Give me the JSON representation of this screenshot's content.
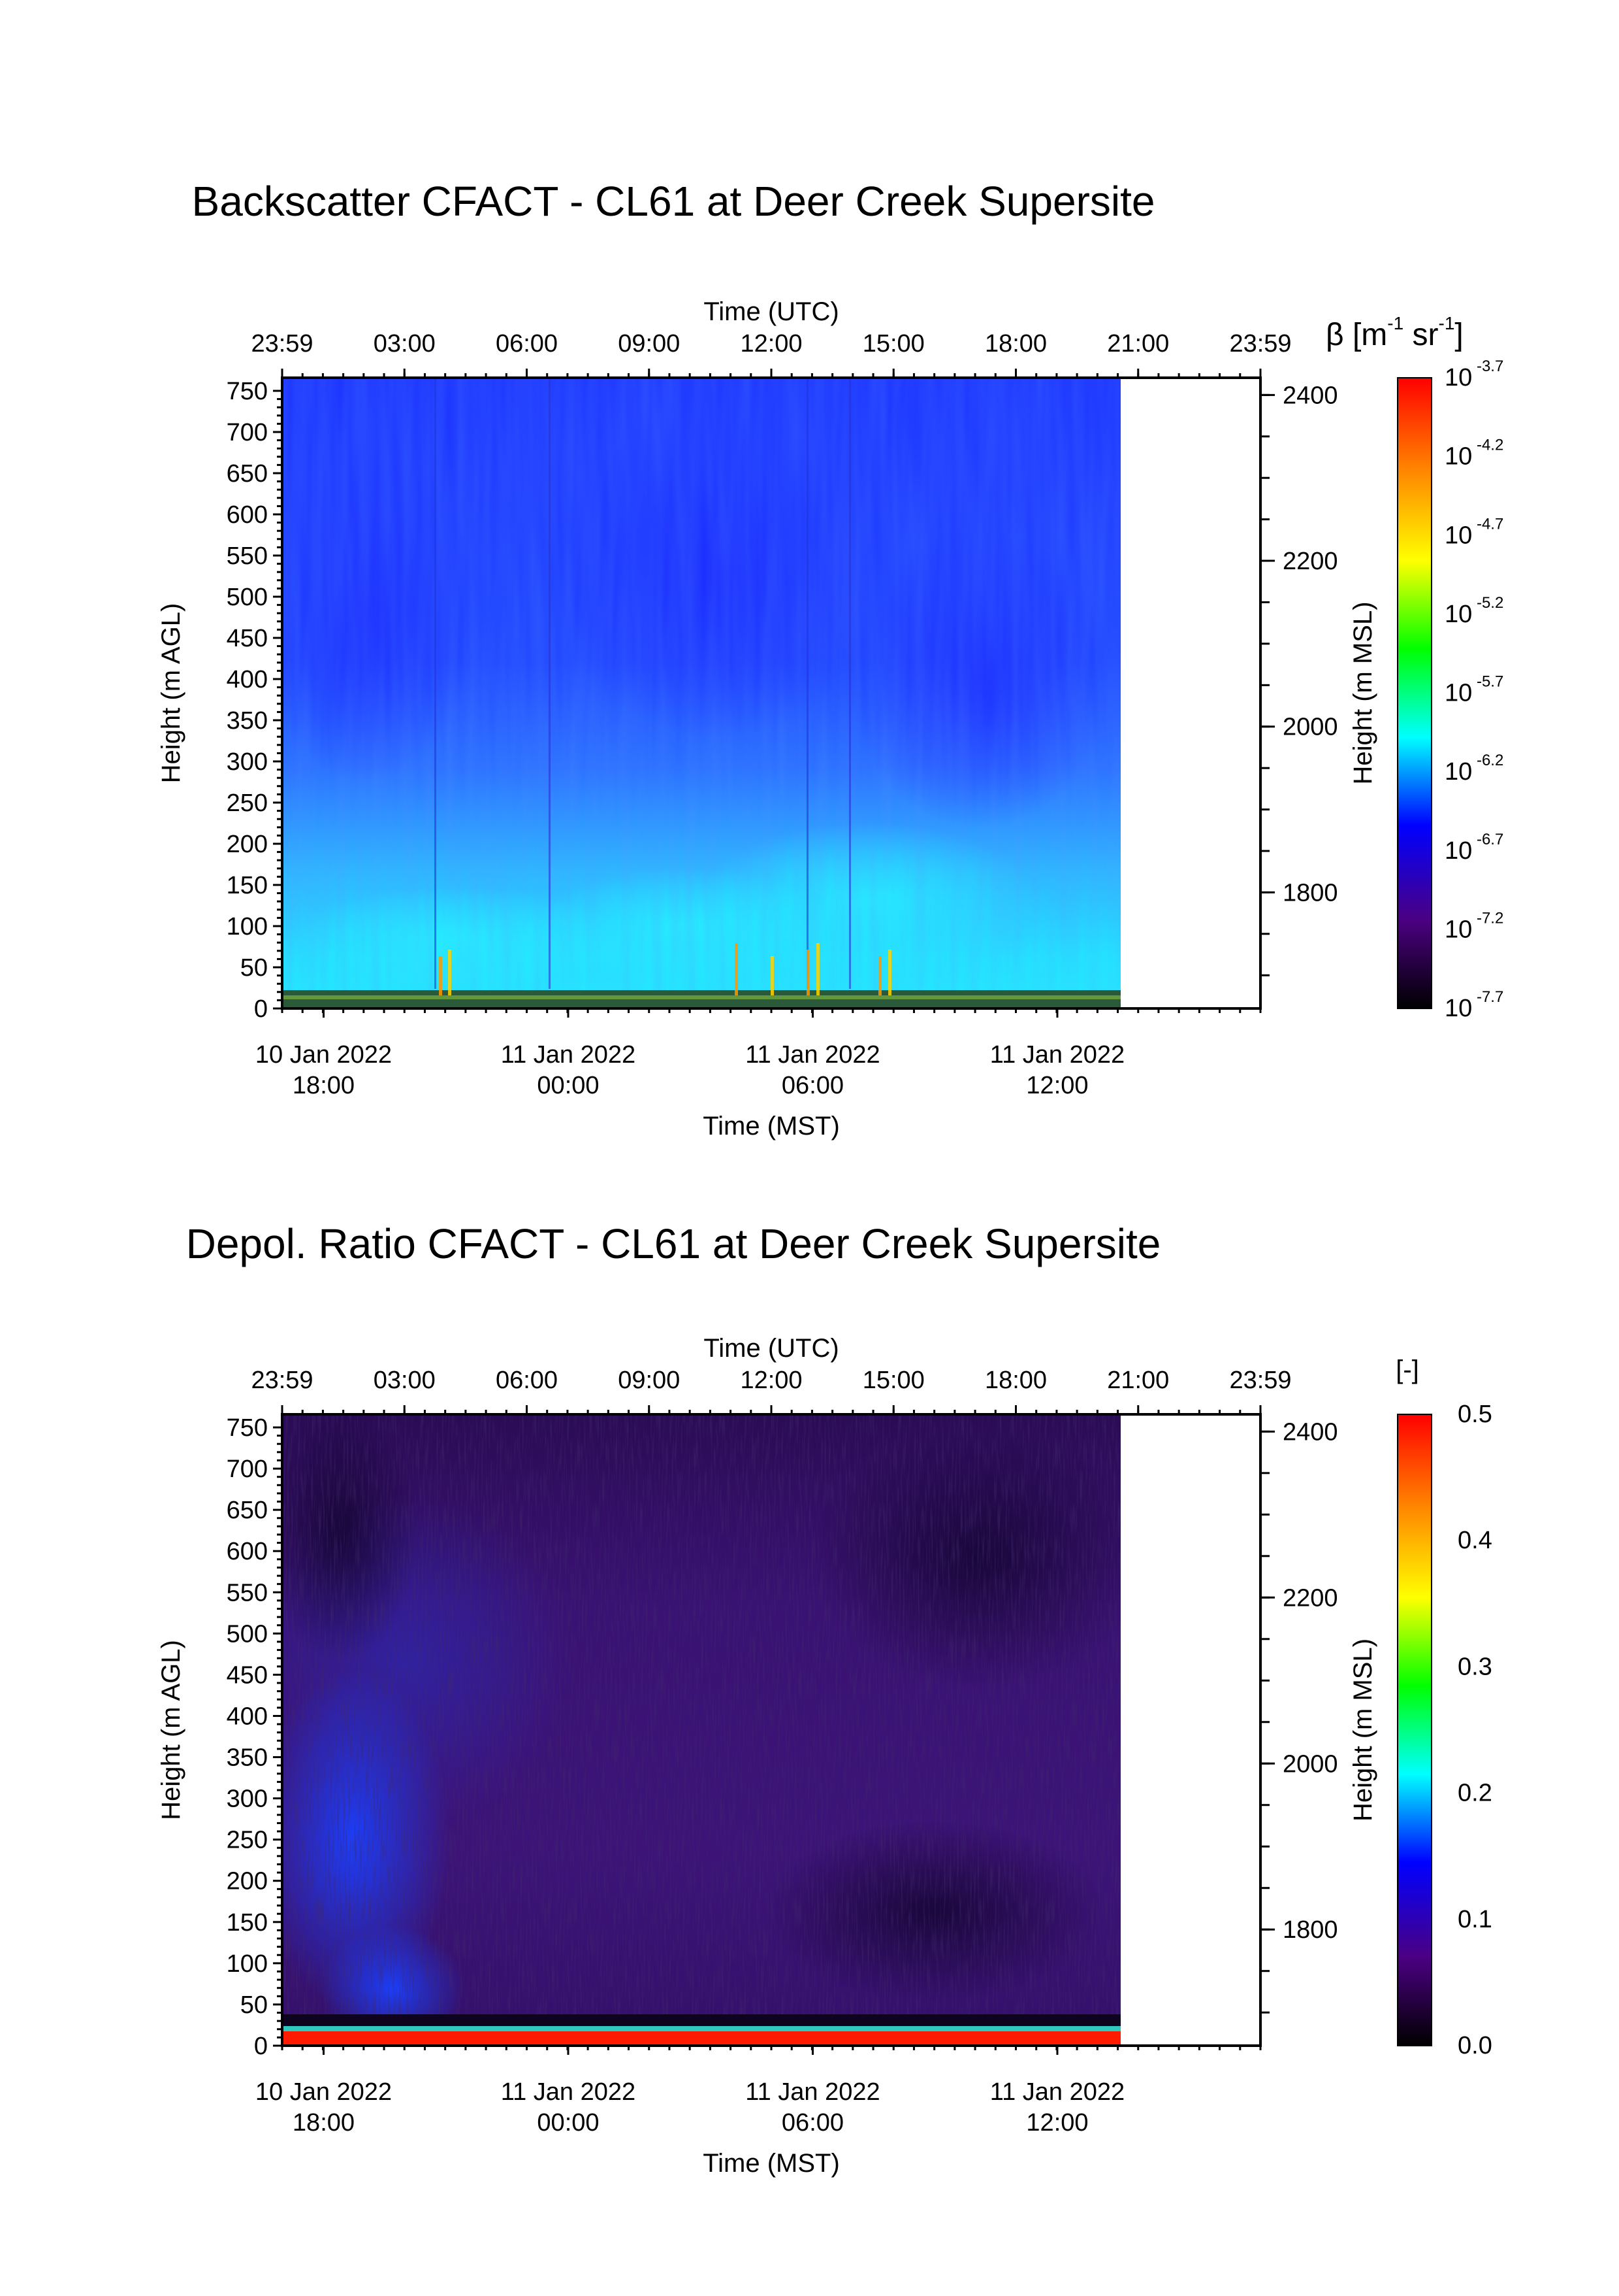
{
  "chart_data": [
    {
      "type": "heatmap",
      "title": "Backscatter CFACT - CL61 at Deer Creek Supersite",
      "top_axis": {
        "label": "Time (UTC)",
        "ticks": [
          "23:59",
          "03:00",
          "06:00",
          "09:00",
          "12:00",
          "15:00",
          "18:00",
          "21:00",
          "23:59"
        ]
      },
      "bottom_axis": {
        "label": "Time (MST)",
        "ticks": [
          {
            "date": "10 Jan 2022",
            "time": "18:00"
          },
          {
            "date": "11 Jan 2022",
            "time": "00:00"
          },
          {
            "date": "11 Jan 2022",
            "time": "06:00"
          },
          {
            "date": "11 Jan 2022",
            "time": "12:00"
          }
        ]
      },
      "left_axis": {
        "label": "Height (m AGL)",
        "ticks": [
          "750",
          "700",
          "650",
          "600",
          "550",
          "500",
          "450",
          "400",
          "350",
          "300",
          "250",
          "200",
          "150",
          "100",
          "50",
          "0"
        ],
        "range": [
          0,
          750
        ]
      },
      "right_axis": {
        "label": "Height (m MSL)",
        "ticks": [
          "2400",
          "2200",
          "2000",
          "1800"
        ]
      },
      "colorbar": {
        "label_prefix": "β [m",
        "label_exp1": "-1",
        "label_mid": " sr",
        "label_exp2": "-1",
        "label_suffix": "]",
        "scale": "log",
        "ticks": [
          {
            "base": "10",
            "exp": "-3.7"
          },
          {
            "base": "10",
            "exp": "-4.2"
          },
          {
            "base": "10",
            "exp": "-4.7"
          },
          {
            "base": "10",
            "exp": "-5.2"
          },
          {
            "base": "10",
            "exp": "-5.7"
          },
          {
            "base": "10",
            "exp": "-6.2"
          },
          {
            "base": "10",
            "exp": "-6.7"
          },
          {
            "base": "10",
            "exp": "-7.2"
          },
          {
            "base": "10",
            "exp": "-7.7"
          }
        ],
        "colors": [
          "#ff0000",
          "#ff8000",
          "#ffff00",
          "#00ff00",
          "#00ffff",
          "#0000ff",
          "#4b0082",
          "#000000"
        ]
      },
      "data_coverage_utc": [
        "23:59",
        "20:30"
      ],
      "colors": {
        "dominant": "#1f3dff",
        "near_surface": "#20e0ff"
      }
    },
    {
      "type": "heatmap",
      "title": "Depol. Ratio CFACT - CL61 at Deer Creek Supersite",
      "top_axis": {
        "label": "Time (UTC)",
        "ticks": [
          "23:59",
          "03:00",
          "06:00",
          "09:00",
          "12:00",
          "15:00",
          "18:00",
          "21:00",
          "23:59"
        ]
      },
      "bottom_axis": {
        "label": "Time (MST)",
        "ticks": [
          {
            "date": "10 Jan 2022",
            "time": "18:00"
          },
          {
            "date": "11 Jan 2022",
            "time": "00:00"
          },
          {
            "date": "11 Jan 2022",
            "time": "06:00"
          },
          {
            "date": "11 Jan 2022",
            "time": "12:00"
          }
        ]
      },
      "left_axis": {
        "label": "Height (m AGL)",
        "ticks": [
          "750",
          "700",
          "650",
          "600",
          "550",
          "500",
          "450",
          "400",
          "350",
          "300",
          "250",
          "200",
          "150",
          "100",
          "50",
          "0"
        ],
        "range": [
          0,
          750
        ]
      },
      "right_axis": {
        "label": "Height (m MSL)",
        "ticks": [
          "2400",
          "2200",
          "2000",
          "1800"
        ]
      },
      "colorbar": {
        "label": "[-]",
        "scale": "linear",
        "range": [
          0.0,
          0.5
        ],
        "ticks": [
          "0.5",
          "0.4",
          "0.3",
          "0.2",
          "0.1",
          "0.0"
        ],
        "colors": [
          "#ff0000",
          "#ff8000",
          "#ffff00",
          "#00ff00",
          "#00ffff",
          "#0000ff",
          "#4b0082",
          "#000000"
        ]
      },
      "data_coverage_utc": [
        "23:59",
        "20:30"
      ],
      "colors": {
        "dominant": "#3a1270",
        "low_level": "#1a3cff",
        "surface": "#ff1500"
      }
    }
  ]
}
